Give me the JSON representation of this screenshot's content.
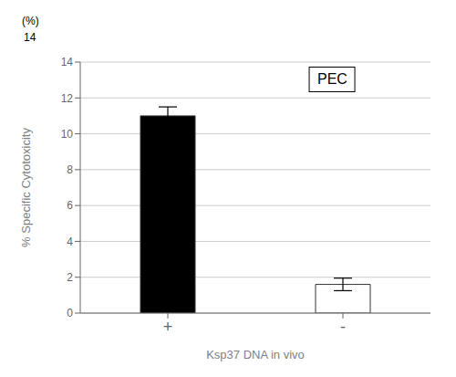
{
  "chart_data": {
    "type": "bar",
    "categories": [
      "+",
      "-"
    ],
    "values": [
      11.0,
      1.6
    ],
    "errors": [
      0.5,
      0.35
    ],
    "colors": [
      "#000000",
      "#ffffff"
    ],
    "ylabel": "% Specific Cytotoxicity",
    "xlabel": "Ksp37 DNA in vivo",
    "annotations": [
      "PEC",
      "14",
      "(%)"
    ],
    "ylim": [
      0,
      14
    ],
    "yticks": [
      0,
      2,
      4,
      6,
      8,
      10,
      12,
      14
    ],
    "grid": true
  }
}
